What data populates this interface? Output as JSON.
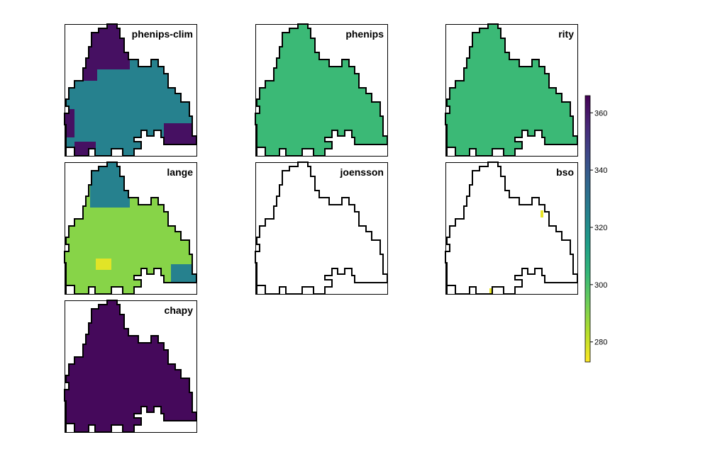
{
  "chart_data": {
    "type": "heatmap",
    "layout": "small-multiples raster maps",
    "color_scale": {
      "palette": "viridis (reversed: low=yellow, high=dark purple)",
      "stops": [
        "#fde725",
        "#b5de2b",
        "#6ece58",
        "#35b779",
        "#1f9e89",
        "#26828e",
        "#31688e",
        "#3e4989",
        "#482878",
        "#440154"
      ],
      "range": [
        273,
        366
      ],
      "ticks": [
        280,
        300,
        320,
        340,
        360
      ],
      "tick_labels": [
        "280",
        "300",
        "320",
        "340",
        "360"
      ],
      "legend_placement": "right"
    },
    "panels": [
      {
        "title": "phenips-clim",
        "fill": "full",
        "dominant_value": 325,
        "regions": [
          {
            "area": "northern tip",
            "value": 362
          },
          {
            "area": "west and south-east edges",
            "value": 362
          }
        ]
      },
      {
        "title": "phenips",
        "fill": "full",
        "dominant_value": 303,
        "regions": []
      },
      {
        "title": "rity",
        "fill": "full",
        "dominant_value": 303,
        "regions": []
      },
      {
        "title": "lange",
        "fill": "full",
        "dominant_value": 290,
        "regions": [
          {
            "area": "northern tip",
            "value": 325
          },
          {
            "area": "south-east corner",
            "value": 325
          },
          {
            "area": "central-south spot",
            "value": 277
          }
        ]
      },
      {
        "title": "joensson",
        "fill": "empty",
        "dominant_value": null,
        "regions": []
      },
      {
        "title": "bso",
        "fill": "empty",
        "dominant_value": null,
        "regions": [
          {
            "area": "a few edge cells",
            "value": 276
          }
        ]
      },
      {
        "title": "chapy",
        "fill": "full",
        "dominant_value": 364,
        "regions": []
      }
    ]
  }
}
